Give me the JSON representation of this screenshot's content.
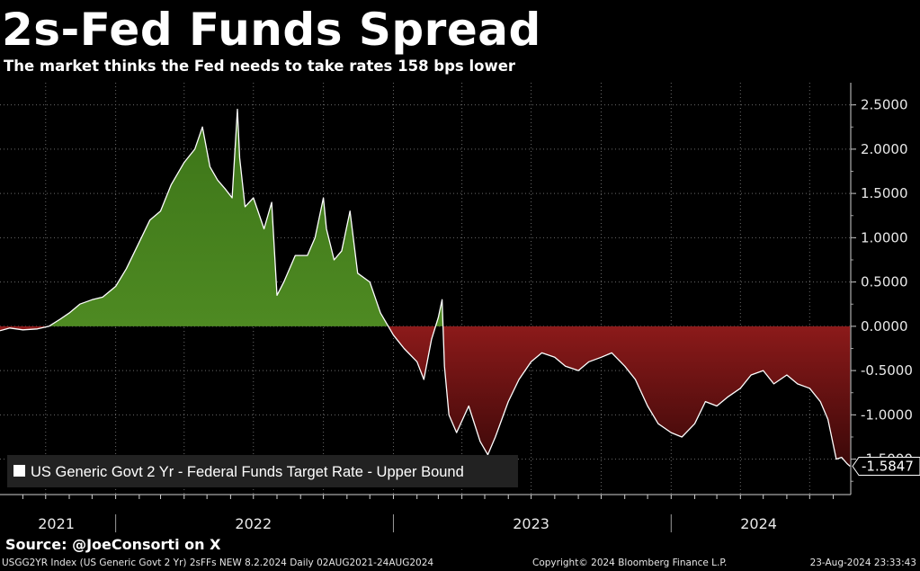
{
  "title": "2s-Fed Funds Spread",
  "subtitle": "The market thinks the Fed needs to take rates 158 bps lower",
  "source": "Source: @JoeConsorti on X",
  "footer": {
    "index_info": "USGG2YR Index (US Generic Govt 2 Yr) 2sFFs NEW 8.2.2024  Daily 02AUG2021-24AUG2024",
    "copyright": "Copyright© 2024 Bloomberg Finance L.P.",
    "timestamp": "23-Aug-2024 23:33:43"
  },
  "colors": {
    "positive_fill": "#4e8a22",
    "negative_fill": "#8c1a1a",
    "line": "#ffffff",
    "grid": "#6a6a6a",
    "background": "#000000"
  },
  "chart_data": {
    "type": "area",
    "title": "2s-Fed Funds Spread",
    "subtitle": "The market thinks the Fed needs to take rates 158 bps lower",
    "legend": [
      "US Generic Govt 2 Yr - Federal Funds Target Rate - Upper Bound"
    ],
    "legend_position": "bottom-left",
    "last_value_label": "-1.5847",
    "xlim": [
      "2021-08-02",
      "2024-08-24"
    ],
    "x_tick_labels": [
      "2021",
      "2022",
      "2023",
      "2024"
    ],
    "ylim": [
      -1.9,
      2.75
    ],
    "y_ticks": [
      2.5,
      2.0,
      1.5,
      1.0,
      0.5,
      0.0,
      -0.5,
      -1.0,
      -1.5
    ],
    "y_tick_labels": [
      "2.5000",
      "2.0000",
      "1.5000",
      "1.0000",
      "0.5000",
      "0.0000",
      "-0.5000",
      "-1.0000",
      "-1.5000"
    ],
    "grid": true,
    "series": [
      {
        "name": "US Generic Govt 2 Yr - Federal Funds Target Rate - Upper Bound",
        "points": [
          [
            "2021-08-02",
            -0.05
          ],
          [
            "2021-08-15",
            -0.02
          ],
          [
            "2021-09-01",
            -0.04
          ],
          [
            "2021-09-20",
            -0.03
          ],
          [
            "2021-10-05",
            0.0
          ],
          [
            "2021-10-20",
            0.08
          ],
          [
            "2021-11-01",
            0.15
          ],
          [
            "2021-11-15",
            0.25
          ],
          [
            "2021-12-01",
            0.3
          ],
          [
            "2021-12-15",
            0.33
          ],
          [
            "2022-01-01",
            0.45
          ],
          [
            "2022-01-15",
            0.65
          ],
          [
            "2022-02-01",
            0.95
          ],
          [
            "2022-02-15",
            1.2
          ],
          [
            "2022-03-01",
            1.3
          ],
          [
            "2022-03-15",
            1.6
          ],
          [
            "2022-04-01",
            1.85
          ],
          [
            "2022-04-15",
            2.0
          ],
          [
            "2022-04-25",
            2.25
          ],
          [
            "2022-05-05",
            1.8
          ],
          [
            "2022-05-15",
            1.65
          ],
          [
            "2022-05-25",
            1.55
          ],
          [
            "2022-06-03",
            1.45
          ],
          [
            "2022-06-10",
            2.45
          ],
          [
            "2022-06-13",
            1.9
          ],
          [
            "2022-06-20",
            1.35
          ],
          [
            "2022-07-01",
            1.45
          ],
          [
            "2022-07-15",
            1.1
          ],
          [
            "2022-07-25",
            1.4
          ],
          [
            "2022-08-01",
            0.35
          ],
          [
            "2022-08-10",
            0.5
          ],
          [
            "2022-08-25",
            0.8
          ],
          [
            "2022-09-10",
            0.8
          ],
          [
            "2022-09-20",
            1.0
          ],
          [
            "2022-10-01",
            1.45
          ],
          [
            "2022-10-05",
            1.1
          ],
          [
            "2022-10-15",
            0.75
          ],
          [
            "2022-10-25",
            0.85
          ],
          [
            "2022-11-05",
            1.3
          ],
          [
            "2022-11-15",
            0.6
          ],
          [
            "2022-12-01",
            0.5
          ],
          [
            "2022-12-15",
            0.15
          ],
          [
            "2023-01-01",
            -0.1
          ],
          [
            "2023-01-15",
            -0.25
          ],
          [
            "2023-02-01",
            -0.4
          ],
          [
            "2023-02-10",
            -0.6
          ],
          [
            "2023-02-20",
            -0.15
          ],
          [
            "2023-03-01",
            0.1
          ],
          [
            "2023-03-06",
            0.3
          ],
          [
            "2023-03-09",
            -0.45
          ],
          [
            "2023-03-15",
            -1.0
          ],
          [
            "2023-03-25",
            -1.2
          ],
          [
            "2023-04-10",
            -0.9
          ],
          [
            "2023-04-25",
            -1.3
          ],
          [
            "2023-05-05",
            -1.45
          ],
          [
            "2023-05-15",
            -1.25
          ],
          [
            "2023-06-01",
            -0.85
          ],
          [
            "2023-06-15",
            -0.6
          ],
          [
            "2023-07-01",
            -0.4
          ],
          [
            "2023-07-15",
            -0.3
          ],
          [
            "2023-08-01",
            -0.35
          ],
          [
            "2023-08-15",
            -0.45
          ],
          [
            "2023-09-01",
            -0.5
          ],
          [
            "2023-09-15",
            -0.4
          ],
          [
            "2023-10-01",
            -0.35
          ],
          [
            "2023-10-15",
            -0.3
          ],
          [
            "2023-11-01",
            -0.45
          ],
          [
            "2023-11-15",
            -0.6
          ],
          [
            "2023-12-01",
            -0.9
          ],
          [
            "2023-12-15",
            -1.1
          ],
          [
            "2024-01-01",
            -1.2
          ],
          [
            "2024-01-15",
            -1.25
          ],
          [
            "2024-02-01",
            -1.1
          ],
          [
            "2024-02-15",
            -0.85
          ],
          [
            "2024-03-01",
            -0.9
          ],
          [
            "2024-03-15",
            -0.8
          ],
          [
            "2024-04-01",
            -0.7
          ],
          [
            "2024-04-15",
            -0.55
          ],
          [
            "2024-05-01",
            -0.5
          ],
          [
            "2024-05-15",
            -0.65
          ],
          [
            "2024-06-01",
            -0.55
          ],
          [
            "2024-06-15",
            -0.65
          ],
          [
            "2024-07-01",
            -0.7
          ],
          [
            "2024-07-15",
            -0.85
          ],
          [
            "2024-07-25",
            -1.05
          ],
          [
            "2024-08-05",
            -1.5
          ],
          [
            "2024-08-12",
            -1.48
          ],
          [
            "2024-08-19",
            -1.55
          ],
          [
            "2024-08-23",
            -1.58
          ]
        ]
      }
    ]
  }
}
